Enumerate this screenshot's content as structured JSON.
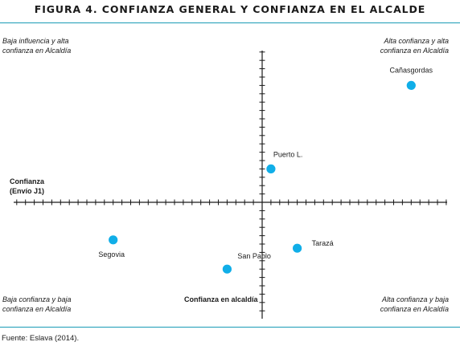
{
  "figure": {
    "title": "FIGURA 4. CONFIANZA GENERAL Y CONFIANZA EN EL ALCALDE",
    "source": "Fuente: Eslava (2014).",
    "accent_color": "#1a9bb5"
  },
  "quadrants": {
    "top_left": [
      "Baja influencia y alta",
      "confianza en Alcaldía"
    ],
    "top_right": [
      "Alta confianza y alta",
      "confianza en Alcaldía"
    ],
    "bottom_left": [
      "Baja confianza y baja",
      "confianza en Alcaldía"
    ],
    "bottom_right": [
      "Alta confianza y baja",
      "confianza en Alcaldía"
    ]
  },
  "axes": {
    "y_label": [
      "Confianza",
      "(Envío J1)"
    ],
    "x_label": "Confianza en alcaldía"
  },
  "chart_data": {
    "type": "scatter",
    "title": "FIGURA 4. CONFIANZA GENERAL Y CONFIANZA EN EL ALCALDE",
    "xlabel": "Confianza en alcaldía",
    "ylabel": "Confianza (Envío J1)",
    "xlim": [
      -31,
      22
    ],
    "ylim": [
      -18,
      18
    ],
    "grid": false,
    "point_color": "#10aee8",
    "points": [
      {
        "name": "Cañasgordas",
        "x": 17,
        "y": 14
      },
      {
        "name": "Puerto L.",
        "x": 1,
        "y": 4
      },
      {
        "name": "Tarazá",
        "x": 4,
        "y": -5.5
      },
      {
        "name": "Segovia",
        "x": -17,
        "y": -4.5
      },
      {
        "name": "San Pablo",
        "x": -4,
        "y": -8
      }
    ]
  }
}
